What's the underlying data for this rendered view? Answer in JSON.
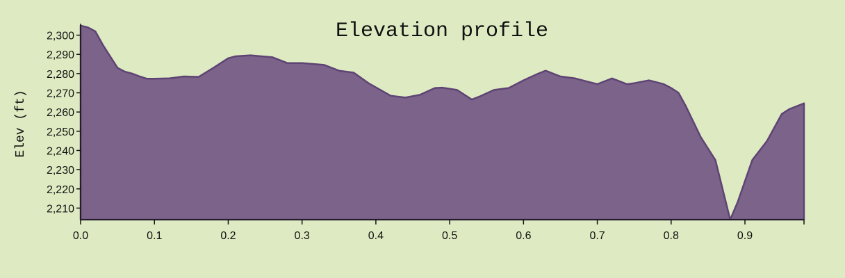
{
  "chart_data": {
    "type": "area",
    "title": "Elevation profile",
    "xlabel": "",
    "ylabel": "Elev (ft)",
    "xlim": [
      0,
      0.98
    ],
    "ylim": [
      2204,
      2306
    ],
    "x_ticks": [
      0.0,
      0.1,
      0.2,
      0.3,
      0.4,
      0.5,
      0.6,
      0.7,
      0.8,
      0.9
    ],
    "x_tick_labels": [
      "0.0",
      "0.1",
      "0.2",
      "0.3",
      "0.4",
      "0.5",
      "0.6",
      "0.7",
      "0.8",
      "0.9"
    ],
    "y_ticks": [
      2210,
      2220,
      2230,
      2240,
      2250,
      2260,
      2270,
      2280,
      2290,
      2300
    ],
    "y_tick_labels": [
      "2,210",
      "2,220",
      "2,230",
      "2,240",
      "2,250",
      "2,260",
      "2,270",
      "2,280",
      "2,290",
      "2,300"
    ],
    "grid": false,
    "colors": {
      "fill": "#7c6389",
      "line": "#5e4474",
      "background": "#deebc2"
    },
    "x": [
      0.0,
      0.01,
      0.02,
      0.03,
      0.04,
      0.05,
      0.06,
      0.07,
      0.08,
      0.09,
      0.1,
      0.12,
      0.14,
      0.16,
      0.18,
      0.2,
      0.21,
      0.23,
      0.26,
      0.28,
      0.3,
      0.33,
      0.35,
      0.37,
      0.39,
      0.42,
      0.44,
      0.46,
      0.48,
      0.49,
      0.51,
      0.53,
      0.54,
      0.56,
      0.58,
      0.6,
      0.62,
      0.63,
      0.65,
      0.67,
      0.69,
      0.7,
      0.72,
      0.74,
      0.75,
      0.77,
      0.79,
      0.8,
      0.81,
      0.82,
      0.83,
      0.84,
      0.86,
      0.88,
      0.89,
      0.91,
      0.93,
      0.95,
      0.96,
      0.98
    ],
    "y": [
      2305,
      2304,
      2302,
      2295,
      2289,
      2283,
      2281,
      2280,
      2278.5,
      2277.3,
      2277.3,
      2277.5,
      2278.5,
      2278.3,
      2283,
      2288,
      2289,
      2289.5,
      2288.5,
      2285.5,
      2285.5,
      2284.5,
      2281.5,
      2280.5,
      2275,
      2268.5,
      2267.5,
      2269,
      2272.5,
      2272.7,
      2271.5,
      2266.5,
      2268,
      2271.5,
      2272.5,
      2276.5,
      2280,
      2281.5,
      2278.5,
      2277.5,
      2275.5,
      2274.5,
      2277.5,
      2274.5,
      2275,
      2276.5,
      2274.5,
      2272.5,
      2270,
      2263,
      2255,
      2247,
      2235,
      2204,
      2213,
      2235,
      2245,
      2259,
      2261.5,
      2264.5
    ]
  }
}
